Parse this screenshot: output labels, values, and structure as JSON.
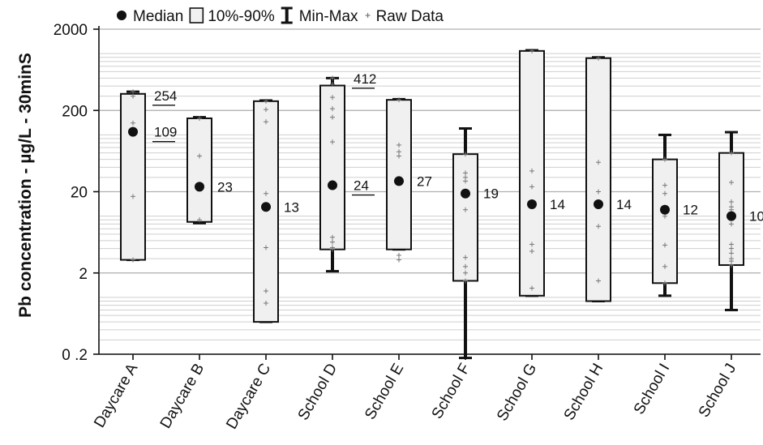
{
  "chart_data": {
    "type": "box",
    "ylabel": "Pb concentration - µg/L - 30minS",
    "yscale": "log",
    "ylim": [
      0.2,
      2000
    ],
    "yticks": [
      {
        "value": 0.2,
        "label": "0 .2"
      },
      {
        "value": 2,
        "label": "2"
      },
      {
        "value": 20,
        "label": "20"
      },
      {
        "value": 200,
        "label": "200"
      },
      {
        "value": 2000,
        "label": "2000"
      }
    ],
    "grid": true,
    "legend": {
      "position": "top",
      "items": [
        {
          "symbol": "median-dot",
          "label": "Median"
        },
        {
          "symbol": "box",
          "label": "10%-90%"
        },
        {
          "symbol": "range-bar",
          "label": "Min-Max"
        },
        {
          "symbol": "raw-cross",
          "label": "Raw Data"
        }
      ]
    },
    "categories": [
      "Daycare A",
      "Daycare B",
      "Daycare C",
      "School D",
      "School E",
      "School F",
      "School G",
      "School H",
      "School I",
      "School J"
    ],
    "series": [
      {
        "category": "Daycare A",
        "min": 2.9,
        "p10": 2.9,
        "p90": 320,
        "max": 340,
        "median": 109,
        "median_label": "109",
        "extra_label": "254",
        "extra_value": 254,
        "raw": [
          340,
          300,
          140,
          110,
          17.5,
          2.9
        ]
      },
      {
        "category": "Daycare B",
        "min": 8.2,
        "p10": 8.5,
        "p90": 160,
        "max": 165,
        "median": 23,
        "median_label": "23",
        "raw": [
          160,
          55,
          23,
          9
        ]
      },
      {
        "category": "Daycare C",
        "min": 0.5,
        "p10": 0.5,
        "p90": 260,
        "max": 265,
        "median": 13,
        "median_label": "13",
        "raw": [
          260,
          205,
          145,
          19,
          4.1,
          1.2,
          0.85
        ]
      },
      {
        "category": "School D",
        "min": 2.1,
        "p10": 3.9,
        "p90": 405,
        "max": 500,
        "median": 24,
        "median_label": "24",
        "extra_label": "412",
        "extra_value": 412,
        "raw": [
          500,
          420,
          290,
          210,
          165,
          82,
          24,
          5.5,
          4.8,
          4.1,
          3.9
        ]
      },
      {
        "category": "School E",
        "min": 3.9,
        "p10": 3.9,
        "p90": 270,
        "max": 275,
        "median": 27,
        "median_label": "27",
        "raw": [
          270,
          75,
          62,
          55,
          27,
          3.3,
          2.9
        ]
      },
      {
        "category": "School F",
        "min": 0.18,
        "p10": 1.6,
        "p90": 58,
        "max": 120,
        "median": 19,
        "median_label": "19",
        "raw": [
          58,
          34,
          30,
          27,
          12,
          3.1,
          2.4,
          2,
          1.6
        ]
      },
      {
        "category": "School G",
        "min": 1.05,
        "p10": 1.05,
        "p90": 1080,
        "max": 1100,
        "median": 14,
        "median_label": "14",
        "raw": [
          1080,
          36,
          23,
          4.5,
          3.7,
          1.3
        ]
      },
      {
        "category": "School H",
        "min": 0.9,
        "p10": 0.9,
        "p90": 880,
        "max": 900,
        "median": 14,
        "median_label": "14",
        "raw": [
          880,
          46,
          20,
          7.5,
          1.6
        ]
      },
      {
        "category": "School I",
        "min": 1.05,
        "p10": 1.5,
        "p90": 50,
        "max": 100,
        "median": 12,
        "median_label": "12",
        "raw": [
          50,
          24,
          19,
          10,
          4.4,
          2.4,
          1.5
        ]
      },
      {
        "category": "School J",
        "min": 0.7,
        "p10": 2.5,
        "p90": 60,
        "max": 108,
        "median": 10,
        "median_label": "10",
        "raw": [
          60,
          26,
          15,
          13,
          12,
          10,
          8,
          4.5,
          4,
          3.5,
          3,
          2.8,
          2.5
        ]
      }
    ]
  }
}
